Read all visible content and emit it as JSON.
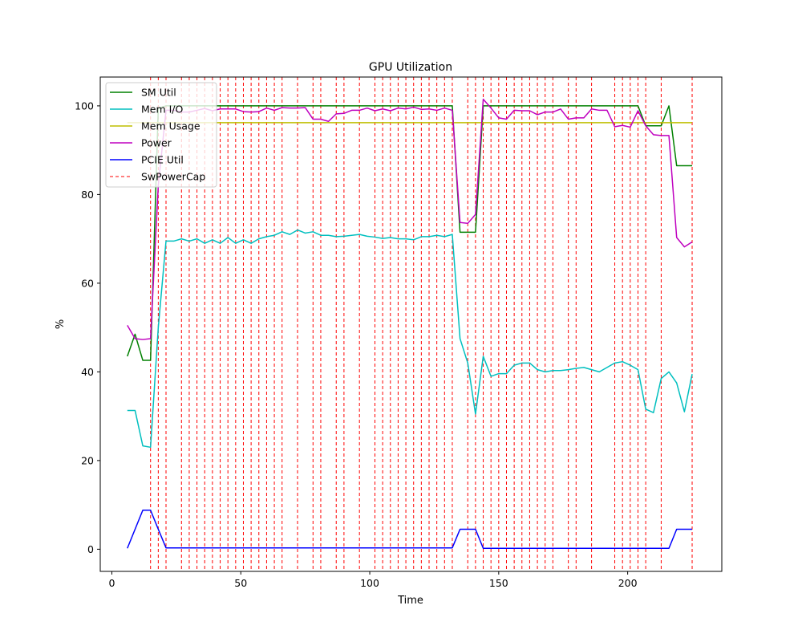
{
  "chart_data": {
    "type": "line",
    "title": "GPU Utilization",
    "xlabel": "Time",
    "ylabel": "%",
    "xlim": [
      -4.5,
      236.5
    ],
    "ylim": [
      -5,
      106.5
    ],
    "xticks": [
      0,
      50,
      100,
      150,
      200
    ],
    "yticks": [
      0,
      20,
      40,
      60,
      80,
      100
    ],
    "grid": false,
    "legend_position": "top-left",
    "series": [
      {
        "name": "SM Util",
        "color": "#008000",
        "x": [
          6,
          9,
          12,
          15,
          18,
          21,
          24,
          27,
          30,
          33,
          36,
          39,
          42,
          45,
          48,
          51,
          54,
          57,
          60,
          63,
          66,
          69,
          72,
          75,
          78,
          81,
          84,
          87,
          90,
          93,
          96,
          99,
          102,
          105,
          108,
          111,
          114,
          117,
          120,
          123,
          126,
          129,
          132,
          135,
          138,
          141,
          144,
          147,
          150,
          153,
          156,
          159,
          162,
          165,
          168,
          171,
          174,
          177,
          180,
          183,
          186,
          189,
          192,
          195,
          198,
          201,
          204,
          207,
          210,
          213,
          216,
          219,
          222,
          225
        ],
        "y": [
          43.5,
          48.5,
          42.6,
          42.6,
          99.5,
          100,
          100,
          100,
          100,
          100,
          100,
          100,
          100,
          100,
          100,
          100,
          100,
          100,
          100,
          100,
          100,
          100,
          100,
          100,
          100,
          100,
          100,
          100,
          100,
          100,
          100,
          100,
          100,
          100,
          100,
          100,
          100,
          100,
          100,
          100,
          100,
          100,
          100,
          71.5,
          71.5,
          71.5,
          100,
          100,
          100,
          100,
          100,
          100,
          100,
          100,
          100,
          100,
          100,
          100,
          100,
          100,
          100,
          100,
          100,
          100,
          100,
          100,
          100,
          95.5,
          95.5,
          95.5,
          100,
          86.5,
          86.5,
          86.5
        ]
      },
      {
        "name": "Mem I/O",
        "color": "#00bfbf",
        "x": [
          6,
          9,
          12,
          15,
          18,
          21,
          24,
          27,
          30,
          33,
          36,
          39,
          42,
          45,
          48,
          51,
          54,
          57,
          60,
          63,
          66,
          69,
          72,
          75,
          78,
          81,
          84,
          87,
          90,
          93,
          96,
          99,
          102,
          105,
          108,
          111,
          114,
          117,
          120,
          123,
          126,
          129,
          132,
          135,
          138,
          141,
          144,
          147,
          150,
          153,
          156,
          159,
          162,
          165,
          168,
          171,
          174,
          177,
          180,
          183,
          186,
          189,
          192,
          195,
          198,
          201,
          204,
          207,
          210,
          213,
          216,
          219,
          222,
          225
        ],
        "y": [
          31.3,
          31.3,
          23.3,
          23.0,
          50.0,
          69.5,
          69.5,
          70.0,
          69.5,
          70.0,
          69.0,
          69.8,
          69.0,
          70.3,
          69.0,
          69.8,
          69.0,
          70.0,
          70.5,
          70.8,
          71.6,
          71.0,
          72.0,
          71.3,
          71.6,
          70.8,
          70.8,
          70.5,
          70.6,
          70.8,
          71.0,
          70.6,
          70.4,
          70.1,
          70.3,
          70.0,
          70.0,
          69.8,
          70.5,
          70.5,
          70.8,
          70.5,
          71.0,
          47.5,
          42.0,
          30.5,
          43.5,
          39.0,
          39.6,
          39.6,
          41.5,
          42.0,
          42.0,
          40.5,
          40.0,
          40.3,
          40.3,
          40.5,
          40.8,
          41.0,
          40.5,
          40.0,
          41.0,
          42.0,
          42.3,
          41.5,
          40.5,
          31.6,
          30.8,
          38.5,
          40.0,
          37.5,
          31.0,
          39.5
        ]
      },
      {
        "name": "Mem Usage",
        "color": "#bfbf00",
        "x": [
          6,
          225
        ],
        "y": [
          96.2,
          96.2
        ]
      },
      {
        "name": "Power",
        "color": "#bf00bf",
        "x": [
          6,
          9,
          12,
          15,
          18,
          21,
          24,
          27,
          30,
          33,
          36,
          39,
          42,
          45,
          48,
          51,
          54,
          57,
          60,
          63,
          66,
          69,
          72,
          75,
          78,
          81,
          84,
          87,
          90,
          93,
          96,
          99,
          102,
          105,
          108,
          111,
          114,
          117,
          120,
          123,
          126,
          129,
          132,
          135,
          138,
          141,
          144,
          147,
          150,
          153,
          156,
          159,
          162,
          165,
          168,
          171,
          174,
          177,
          180,
          183,
          186,
          189,
          192,
          195,
          198,
          201,
          204,
          207,
          210,
          213,
          216,
          219,
          222,
          225
        ],
        "y": [
          50.5,
          47.5,
          47.3,
          47.5,
          82.0,
          99.0,
          99.0,
          98.6,
          98.6,
          99.0,
          99.4,
          98.9,
          99.3,
          99.3,
          99.3,
          98.7,
          98.6,
          98.7,
          99.5,
          99.0,
          99.6,
          99.5,
          99.5,
          99.6,
          97.0,
          97.0,
          96.5,
          98.2,
          98.3,
          99.0,
          99.0,
          99.5,
          98.9,
          99.3,
          98.9,
          99.5,
          99.3,
          99.7,
          99.2,
          99.3,
          99.0,
          99.5,
          99.0,
          73.7,
          73.5,
          75.5,
          101.5,
          99.5,
          97.3,
          97.0,
          99.0,
          98.9,
          98.9,
          98.0,
          98.6,
          98.6,
          99.3,
          97.0,
          97.3,
          97.3,
          99.3,
          99.0,
          99.0,
          95.3,
          95.6,
          95.2,
          98.9,
          95.5,
          93.5,
          93.3,
          93.3,
          70.3,
          68.2,
          69.3
        ]
      },
      {
        "name": "PCIE Util",
        "color": "#0000ff",
        "x": [
          6,
          9,
          12,
          15,
          18,
          21,
          24,
          27,
          30,
          33,
          36,
          39,
          42,
          45,
          48,
          51,
          54,
          57,
          60,
          63,
          66,
          69,
          72,
          75,
          78,
          81,
          84,
          87,
          90,
          93,
          96,
          99,
          102,
          105,
          108,
          111,
          114,
          117,
          120,
          123,
          126,
          129,
          132,
          135,
          138,
          141,
          144,
          147,
          150,
          153,
          156,
          159,
          162,
          165,
          168,
          171,
          174,
          177,
          180,
          183,
          186,
          189,
          192,
          195,
          198,
          201,
          204,
          207,
          210,
          213,
          216,
          219,
          222,
          225
        ],
        "y": [
          0.2,
          4.5,
          8.8,
          8.8,
          4.5,
          0.3,
          0.3,
          0.3,
          0.3,
          0.3,
          0.3,
          0.3,
          0.3,
          0.3,
          0.3,
          0.3,
          0.3,
          0.3,
          0.3,
          0.3,
          0.3,
          0.3,
          0.3,
          0.3,
          0.3,
          0.3,
          0.3,
          0.3,
          0.3,
          0.3,
          0.3,
          0.3,
          0.3,
          0.3,
          0.3,
          0.3,
          0.3,
          0.3,
          0.3,
          0.3,
          0.3,
          0.3,
          0.3,
          4.5,
          4.5,
          4.5,
          0.2,
          0.2,
          0.2,
          0.2,
          0.2,
          0.2,
          0.2,
          0.2,
          0.2,
          0.2,
          0.2,
          0.2,
          0.2,
          0.2,
          0.2,
          0.2,
          0.2,
          0.2,
          0.2,
          0.2,
          0.2,
          0.2,
          0.2,
          0.2,
          0.2,
          4.5,
          4.5,
          4.5
        ]
      }
    ],
    "vlines": {
      "name": "SwPowerCap",
      "color": "#ff0000",
      "style": "dashed",
      "x": [
        15,
        18,
        21,
        27,
        30,
        33,
        36,
        39,
        42,
        45,
        48,
        51,
        54,
        57,
        60,
        63,
        66,
        72,
        78,
        81,
        87,
        90,
        96,
        102,
        105,
        108,
        111,
        114,
        117,
        120,
        123,
        126,
        129,
        132,
        138,
        141,
        144,
        147,
        150,
        153,
        156,
        159,
        162,
        165,
        168,
        171,
        177,
        180,
        186,
        195,
        198,
        201,
        204,
        207,
        213,
        225
      ]
    }
  }
}
